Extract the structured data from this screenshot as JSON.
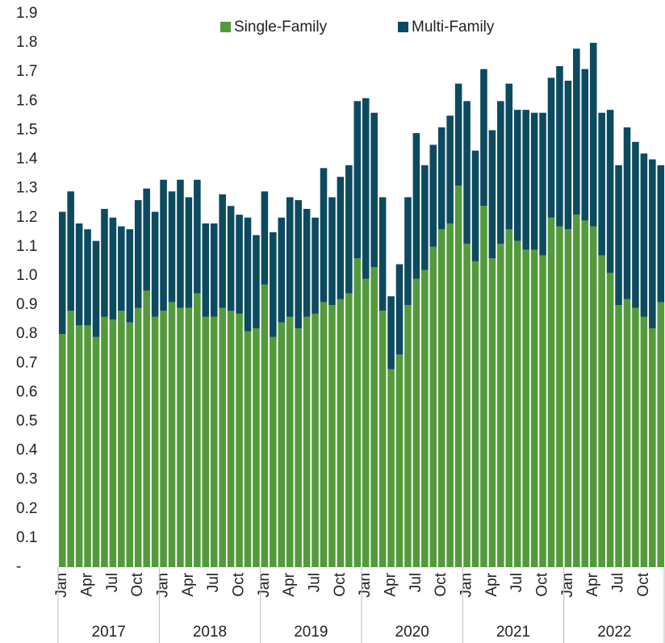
{
  "chart_data": {
    "type": "stacked_bar",
    "categories": [
      "Jan",
      null,
      null,
      "Apr",
      null,
      null,
      "Jul",
      null,
      null,
      "Oct",
      null,
      null,
      "Jan",
      null,
      null,
      "Apr",
      null,
      null,
      "Jul",
      null,
      null,
      "Oct",
      null,
      null,
      "Jan",
      null,
      null,
      "Apr",
      null,
      null,
      "Jul",
      null,
      null,
      "Oct",
      null,
      null,
      "Jan",
      null,
      null,
      "Apr",
      null,
      null,
      "Jul",
      null,
      null,
      "Oct",
      null,
      null,
      "Jan",
      null,
      null,
      "Apr",
      null,
      null,
      "Jul",
      null,
      null,
      "Oct",
      null,
      null,
      "Jan",
      null,
      null,
      "Apr",
      null,
      null,
      "Jul",
      null,
      null,
      "Oct",
      null,
      null
    ],
    "year_groups": [
      "2017",
      "2018",
      "2019",
      "2020",
      "2021",
      "2022"
    ],
    "series": [
      {
        "name": "Single-Family",
        "color": "#549a3c",
        "values": [
          0.8,
          0.88,
          0.83,
          0.83,
          0.79,
          0.86,
          0.85,
          0.88,
          0.84,
          0.89,
          0.95,
          0.86,
          0.88,
          0.91,
          0.89,
          0.89,
          0.94,
          0.86,
          0.86,
          0.89,
          0.88,
          0.87,
          0.81,
          0.82,
          0.97,
          0.79,
          0.84,
          0.86,
          0.82,
          0.86,
          0.87,
          0.91,
          0.9,
          0.92,
          0.94,
          1.06,
          0.99,
          1.03,
          0.88,
          0.68,
          0.73,
          0.9,
          0.99,
          1.02,
          1.1,
          1.16,
          1.18,
          1.31,
          1.11,
          1.05,
          1.24,
          1.06,
          1.11,
          1.16,
          1.12,
          1.09,
          1.09,
          1.07,
          1.2,
          1.17,
          1.16,
          1.21,
          1.19,
          1.17,
          1.07,
          1.01,
          0.9,
          0.92,
          0.89,
          0.86,
          0.82,
          0.91
        ]
      },
      {
        "name": "Multi-Family",
        "color": "#0c4a5f",
        "values": [
          0.42,
          0.41,
          0.35,
          0.33,
          0.33,
          0.37,
          0.35,
          0.29,
          0.32,
          0.37,
          0.35,
          0.36,
          0.45,
          0.38,
          0.44,
          0.38,
          0.39,
          0.32,
          0.32,
          0.39,
          0.36,
          0.34,
          0.39,
          0.32,
          0.32,
          0.36,
          0.36,
          0.41,
          0.44,
          0.37,
          0.33,
          0.46,
          0.37,
          0.42,
          0.44,
          0.54,
          0.62,
          0.53,
          0.39,
          0.25,
          0.31,
          0.37,
          0.5,
          0.36,
          0.35,
          0.35,
          0.37,
          0.35,
          0.49,
          0.38,
          0.47,
          0.44,
          0.49,
          0.5,
          0.45,
          0.48,
          0.47,
          0.49,
          0.48,
          0.55,
          0.51,
          0.57,
          0.52,
          0.63,
          0.49,
          0.56,
          0.48,
          0.59,
          0.57,
          0.56,
          0.58,
          0.47
        ]
      }
    ],
    "ylim": [
      0,
      1.9
    ],
    "yticks": [
      {
        "value": 0,
        "label": "-"
      },
      0.1,
      0.2,
      0.3,
      0.4,
      0.5,
      0.6,
      0.7,
      0.8,
      0.9,
      {
        "value": 1,
        "label": "1.0"
      },
      1.1,
      1.2,
      1.3,
      1.4,
      1.5,
      1.6,
      1.7,
      1.8,
      1.9
    ],
    "grid": false,
    "legend": "top"
  }
}
